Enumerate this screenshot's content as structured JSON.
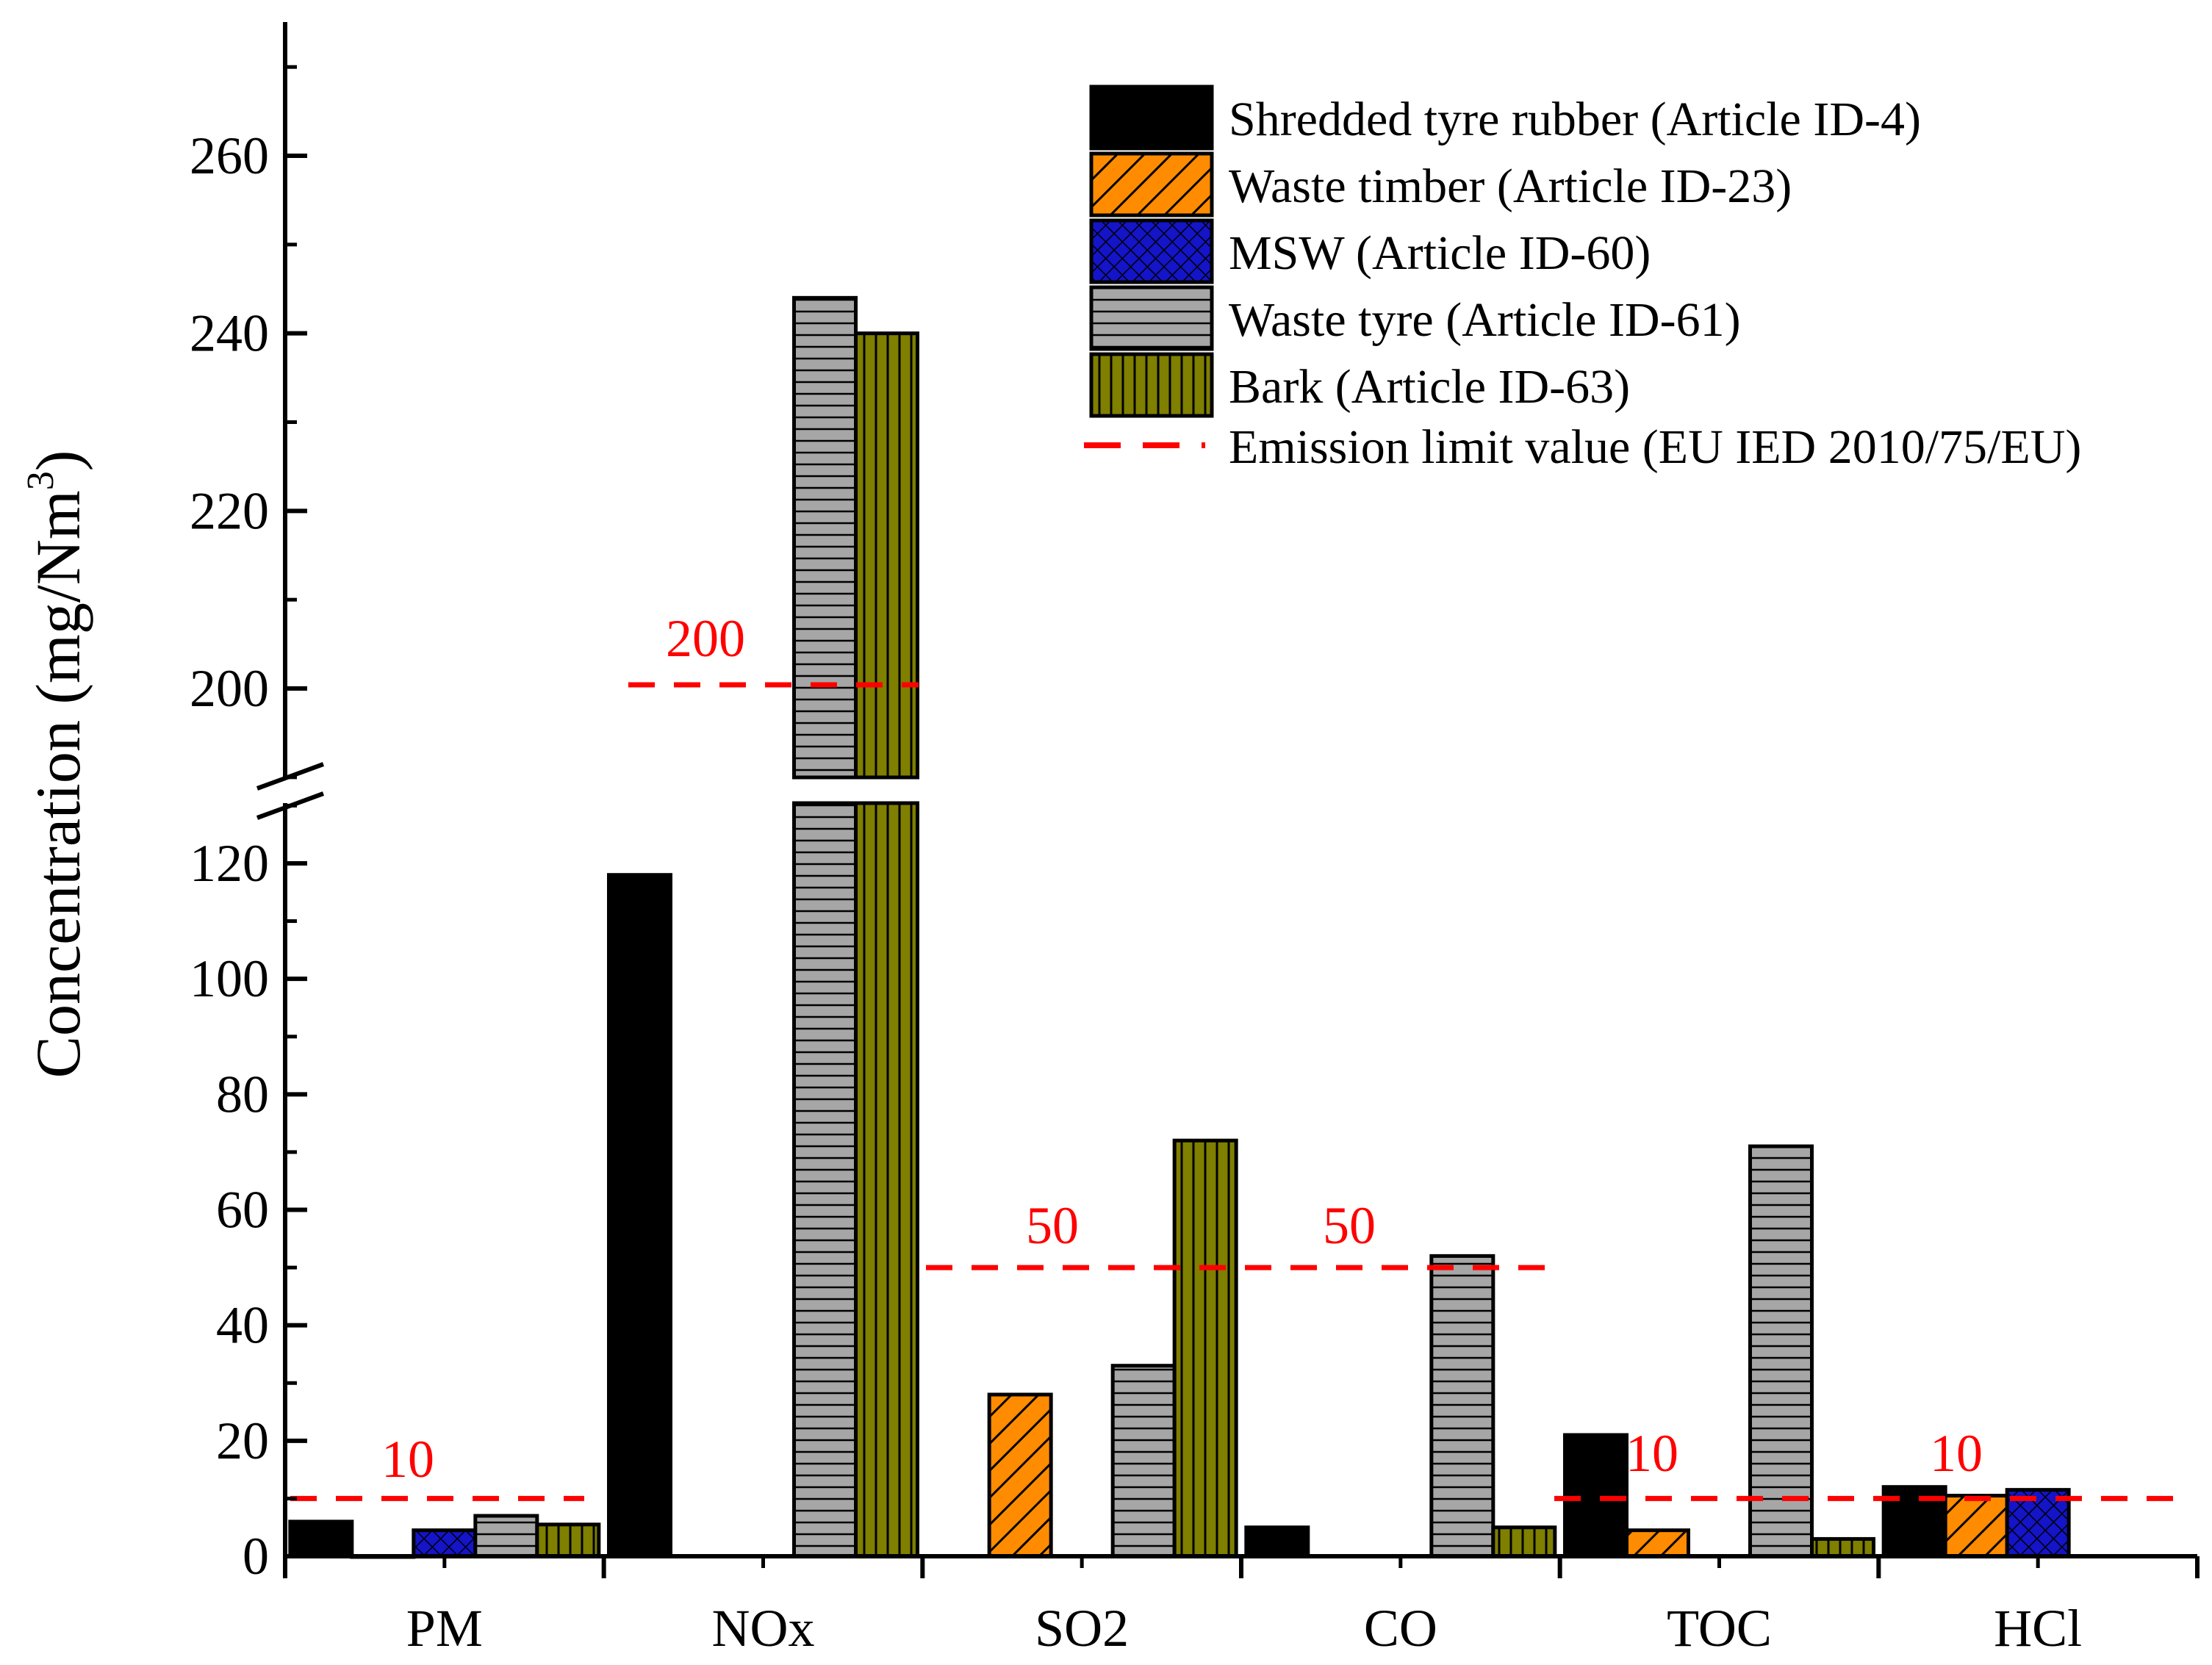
{
  "chart_data": {
    "type": "bar",
    "ylabel": "Concentration (mg/Nm",
    "ylabel_sup": "3",
    "ylabel_close": ")",
    "broken_axis": true,
    "ylim_lower": [
      0,
      130
    ],
    "ylim_upper": [
      190,
      275
    ],
    "yticks_lower": [
      "0",
      "20",
      "40",
      "60",
      "80",
      "100",
      "120"
    ],
    "yticks_upper": [
      "200",
      "220",
      "240",
      "260"
    ],
    "categories": [
      "PM",
      "NOx",
      "SO2",
      "CO",
      "TOC",
      "HCl"
    ],
    "series": [
      {
        "name": "Shredded tyre rubber (Article ID-4)",
        "color": "#000000",
        "pattern": "solid",
        "values": [
          6,
          118,
          null,
          5,
          21,
          12
        ]
      },
      {
        "name": "Waste timber (Article ID-23)",
        "color": "#ff8c00",
        "pattern": "diagonal",
        "values": [
          0,
          null,
          28,
          null,
          4.5,
          10.5
        ]
      },
      {
        "name": "MSW (Article ID-60)",
        "color": "#1414c8",
        "pattern": "crosshatch",
        "values": [
          4.5,
          null,
          null,
          null,
          null,
          11.5
        ]
      },
      {
        "name": "Waste tyre (Article ID-61)",
        "color": "#a6a6a6",
        "pattern": "horizontal",
        "values": [
          7,
          244,
          33,
          52,
          71,
          null
        ]
      },
      {
        "name": "Bark (Article ID-63)",
        "color": "#7f7f00",
        "pattern": "vertical",
        "values": [
          5.5,
          240,
          72,
          5,
          3,
          null
        ]
      }
    ],
    "emission_limit": {
      "name": "Emission limit value (EU IED 2010/75/EU)",
      "color": "#ff0000",
      "segments": [
        {
          "value": 10,
          "label": "10",
          "from": "PM",
          "to": "PM"
        },
        {
          "value": 200,
          "label": "200",
          "from": "NOx",
          "to": "NOx"
        },
        {
          "value": 50,
          "label": "50",
          "from": "SO2",
          "to": "CO"
        },
        {
          "value": 10,
          "label": "10",
          "from": "TOC",
          "to": "HCl"
        }
      ],
      "label_50_second": "50"
    },
    "legend_position": "top-right"
  }
}
